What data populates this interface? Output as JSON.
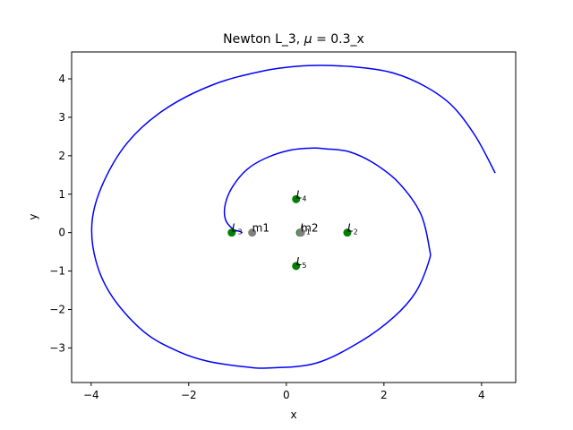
{
  "chart_data": {
    "type": "line",
    "title": "Newton L_3, μ = 0.3_x",
    "title_parts": {
      "prefix": "Newton L_3, ",
      "mu": "μ",
      "suffix": " = 0.3_x"
    },
    "xlabel": "x",
    "ylabel": "y",
    "xlim": [
      -4.4,
      4.7
    ],
    "ylim": [
      -3.9,
      4.7
    ],
    "xticks": [
      -4,
      -2,
      0,
      2,
      4
    ],
    "yticks": [
      -3,
      -2,
      -1,
      0,
      1,
      2,
      3,
      4
    ],
    "grid": false,
    "series": [
      {
        "color": "#0000ff",
        "x": [
          4.28,
          3.88,
          3.4,
          2.85,
          2.2,
          1.5,
          0.75,
          0.25,
          -0.5,
          -1.5,
          -2.5,
          -3.25,
          -3.75,
          -3.98,
          -3.9,
          -3.55,
          -2.9,
          -2.2,
          -1.6,
          -0.8,
          -0.35,
          0.6,
          1.5,
          2.2,
          2.65,
          2.92,
          2.93,
          2.75,
          2.3,
          1.8,
          1.3,
          0.8,
          0.55,
          0.1,
          -0.4,
          -0.8,
          -1.1,
          -1.25,
          -1.25,
          -1.1,
          -0.95,
          -0.9
        ],
        "y": [
          1.55,
          2.5,
          3.3,
          3.8,
          4.15,
          4.3,
          4.35,
          4.33,
          4.2,
          3.85,
          3.2,
          2.35,
          1.3,
          0.3,
          -0.75,
          -1.7,
          -2.6,
          -3.1,
          -3.35,
          -3.5,
          -3.52,
          -3.4,
          -2.85,
          -2.2,
          -1.55,
          -0.75,
          -0.4,
          0.5,
          1.3,
          1.8,
          2.1,
          2.18,
          2.2,
          2.15,
          1.95,
          1.65,
          1.2,
          0.75,
          0.35,
          0.1,
          0.03,
          0.0
        ]
      }
    ],
    "points": [
      {
        "label_main": "L",
        "label_sub": "4",
        "x": 0.2,
        "y": 0.87,
        "color": "#008000"
      },
      {
        "label_main": "L",
        "label_sub": "5",
        "x": 0.2,
        "y": -0.87,
        "color": "#008000"
      },
      {
        "label_main": "L",
        "label_sub": "3",
        "x": -1.12,
        "y": 0.0,
        "color": "#008000"
      },
      {
        "label_main": "L",
        "label_sub": "2",
        "x": 1.25,
        "y": 0.0,
        "color": "#008000"
      },
      {
        "label_main": "L",
        "label_sub": "1",
        "x": 0.28,
        "y": 0.0,
        "color": "#008000"
      },
      {
        "label_main": "m1",
        "label_sub": "",
        "x": -0.7,
        "y": 0.0,
        "color": "#808080"
      },
      {
        "label_main": "m2",
        "label_sub": "",
        "x": 0.3,
        "y": 0.0,
        "color": "#808080"
      }
    ]
  }
}
